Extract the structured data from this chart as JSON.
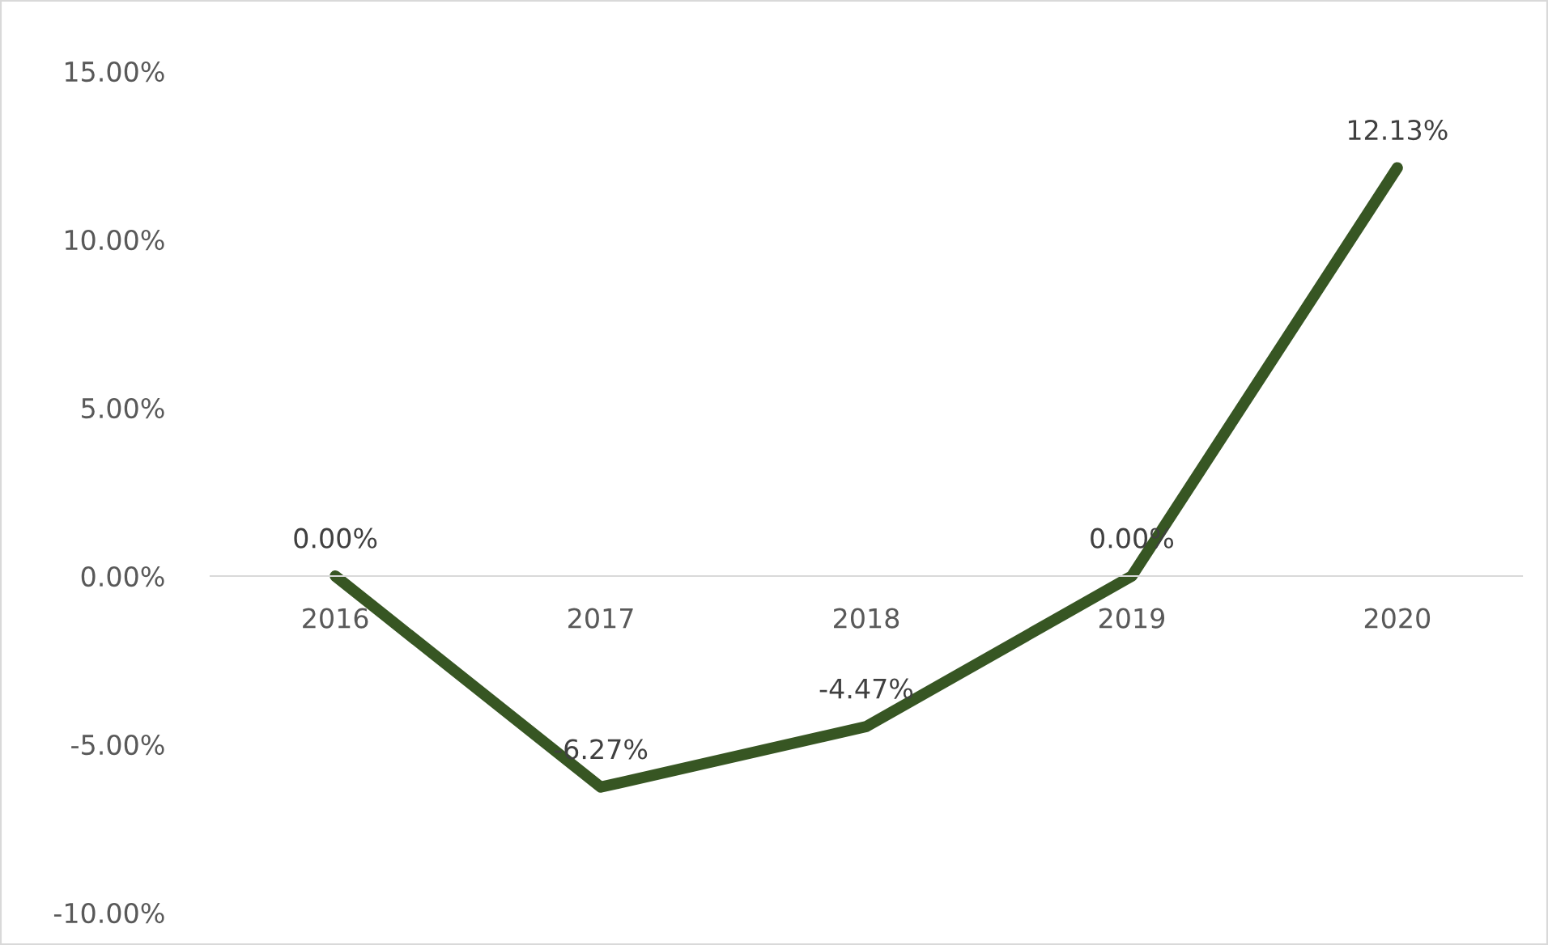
{
  "chart_data": {
    "type": "line",
    "categories": [
      "2016",
      "2017",
      "2018",
      "2019",
      "2020"
    ],
    "series": [
      {
        "color": "#375623",
        "values": [
          0,
          -6.27,
          -4.47,
          0,
          12.13
        ],
        "value_labels": [
          "0.00%",
          "-6.27%",
          "-4.47%",
          "0.00%",
          "12.13%"
        ]
      }
    ],
    "ylim": [
      -10,
      15
    ],
    "yticks": [
      {
        "value": -10,
        "label": "-10.00%"
      },
      {
        "value": -5,
        "label": "-5.00%"
      },
      {
        "value": 0,
        "label": "0.00%"
      },
      {
        "value": 5,
        "label": "5.00%"
      },
      {
        "value": 10,
        "label": "10.00%"
      },
      {
        "value": 15,
        "label": "15.00%"
      }
    ],
    "marker": "none",
    "line_style": "solid"
  }
}
